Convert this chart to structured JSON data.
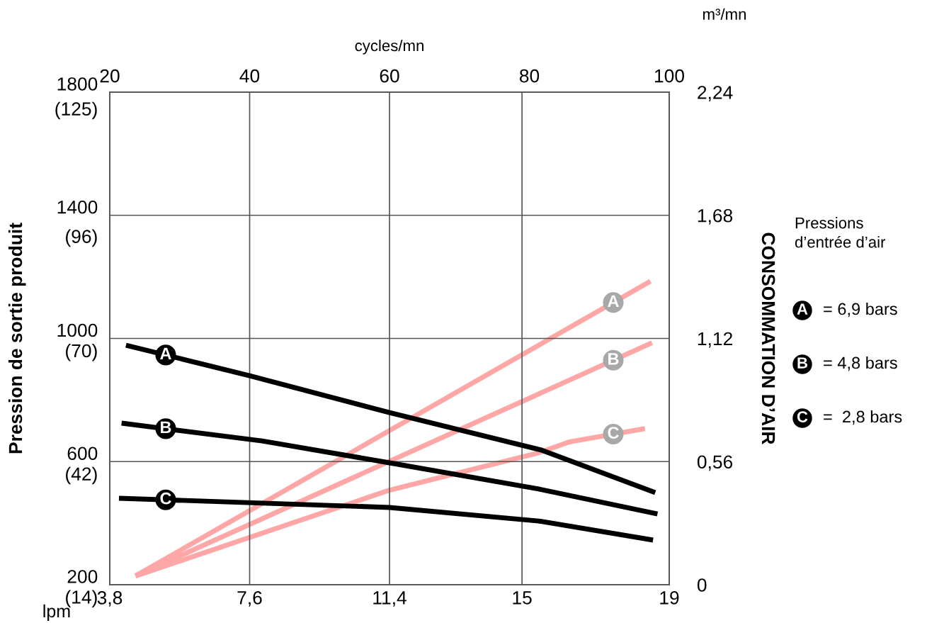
{
  "chart_data": {
    "type": "line",
    "xlabel": "lpm",
    "x2label": "cycles/mn",
    "ylabel": "Pression de sortie produit",
    "y2label": "CONSOMMATION D’AIR",
    "legend_title": "Pressions\nd’entrée d’air",
    "annotations": [
      "m³/mn",
      "= 6,9 bars",
      "= 4,8 bars",
      "=  2,8 bars"
    ],
    "xlim": [
      3.8,
      19
    ],
    "xticks": [
      {
        "value": 3.8,
        "label": "3,8"
      },
      {
        "value": 7.6,
        "label": "7,6"
      },
      {
        "value": 11.4,
        "label": "11,4"
      },
      15,
      19
    ],
    "x2lim": [
      20,
      100
    ],
    "x2ticks": [
      20,
      40,
      60,
      80,
      100
    ],
    "ylim": [
      200,
      1800
    ],
    "yticks": [
      200,
      600,
      1000,
      1400,
      1800
    ],
    "y3lim": [
      14,
      126
    ],
    "y3ticks": [
      {
        "value": 14,
        "label": "(14)"
      },
      {
        "value": 42,
        "label": "(42)"
      },
      {
        "value": 70,
        "label": "(70)"
      },
      {
        "value": 96,
        "label": "(96)"
      },
      {
        "value": 125,
        "label": "(125)"
      }
    ],
    "y2lim": [
      0,
      2.24
    ],
    "y2ticks": [
      0,
      {
        "value": 0.56,
        "label": "0,56"
      },
      {
        "value": 1.12,
        "label": "1,12"
      },
      {
        "value": 1.68,
        "label": "1,68"
      },
      {
        "value": 2.24,
        "label": "2,24"
      }
    ],
    "grid": true,
    "legend": "right",
    "marker": "none",
    "line_style": "solid",
    "series": [
      {
        "name": "A",
        "color": "#000000",
        "x": [
          4.24,
          7.6,
          11.4,
          15.54,
          18.62
        ],
        "values": [
          978,
          879,
          759,
          637,
          499
        ]
      },
      {
        "name": "B",
        "color": "#000000",
        "x": [
          4.12,
          7.94,
          11.4,
          15.45,
          18.68
        ],
        "values": [
          725,
          667,
          596,
          511,
          430
        ]
      },
      {
        "name": "C",
        "color": "#000000",
        "x": [
          4.05,
          11.4,
          15.45,
          18.56
        ],
        "values": [
          481,
          451,
          407,
          345
        ]
      },
      {
        "name": "A",
        "color": "#ffa6a6",
        "axis": "y2",
        "x": [
          4.5,
          18.49
        ],
        "values": [
          0.04,
          1.38
        ]
      },
      {
        "name": "B",
        "color": "#ffa6a6",
        "axis": "y2",
        "x": [
          4.5,
          18.53
        ],
        "values": [
          0.04,
          1.1
        ]
      },
      {
        "name": "C",
        "color": "#ffa6a6",
        "axis": "y2",
        "x": [
          4.5,
          11.4,
          15.45,
          16.3,
          18.34
        ],
        "values": [
          0.04,
          0.43,
          0.6,
          0.65,
          0.71
        ]
      }
    ]
  }
}
